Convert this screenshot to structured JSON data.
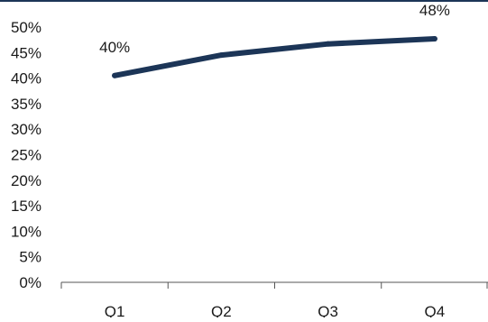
{
  "chart_data": {
    "type": "line",
    "categories": [
      "Q1",
      "Q2",
      "Q3",
      "Q4"
    ],
    "series": [
      {
        "values": [
          40.5,
          44.5,
          46.7,
          47.7
        ],
        "data_labels": [
          "40%",
          "",
          "",
          "48%"
        ]
      }
    ],
    "y_ticks": [
      "0%",
      "5%",
      "10%",
      "15%",
      "20%",
      "25%",
      "30%",
      "35%",
      "40%",
      "45%",
      "50%"
    ],
    "ylim": [
      0,
      50
    ],
    "grid": false,
    "legend": "none",
    "line_color": "#1c3557",
    "title": "",
    "xlabel": "",
    "ylabel": ""
  },
  "colors": {
    "top_rule": "#1c3557",
    "axis": "#555555"
  }
}
